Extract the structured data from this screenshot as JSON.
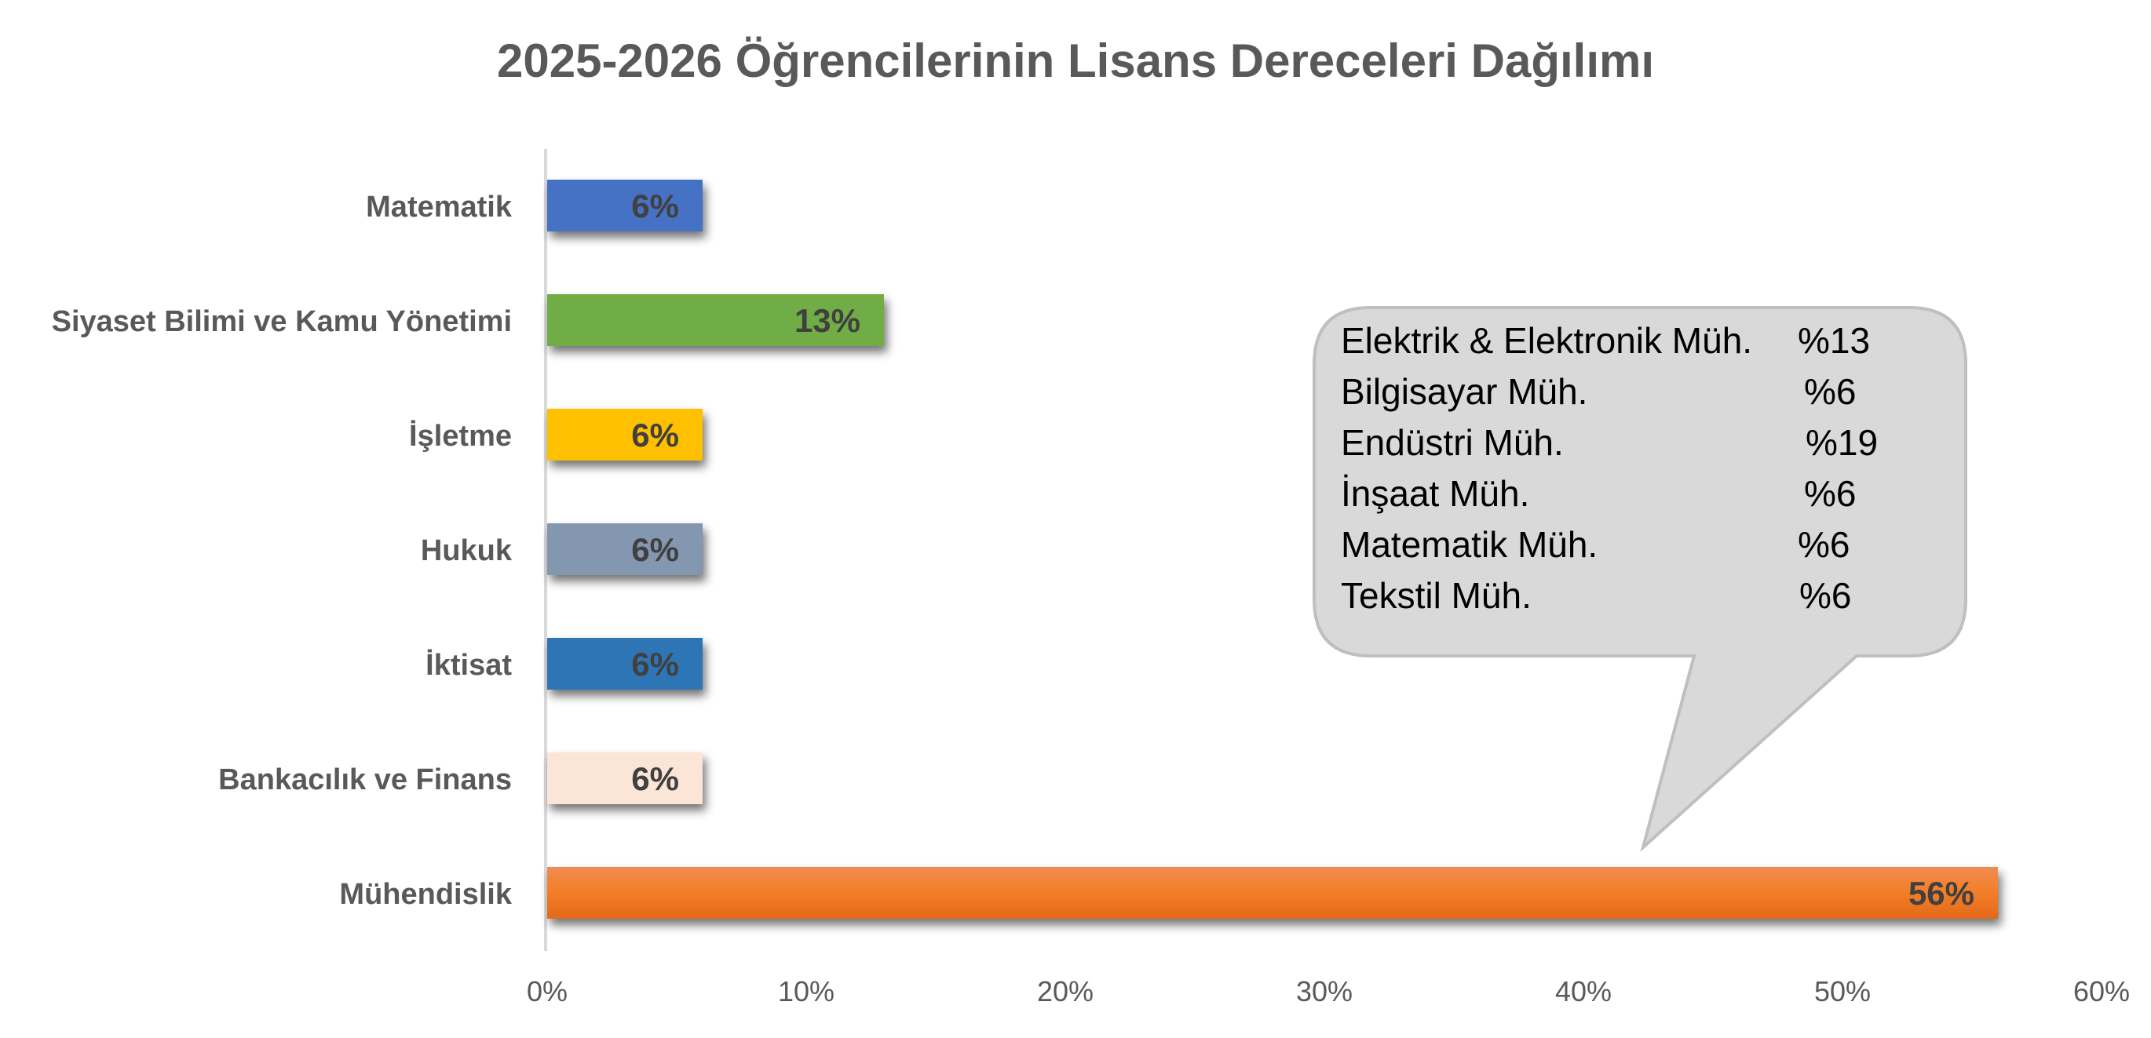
{
  "chart_data": {
    "type": "bar",
    "orientation": "horizontal",
    "title": "2025-2026 Öğrencilerinin Lisans Dereceleri Dağılımı",
    "xlabel": "",
    "ylabel": "",
    "xlim": [
      0,
      60
    ],
    "x_ticks": [
      0,
      10,
      20,
      30,
      40,
      50,
      60
    ],
    "x_tick_labels": [
      "0%",
      "10%",
      "20%",
      "30%",
      "40%",
      "50%",
      "60%"
    ],
    "grid": false,
    "legend": "none",
    "categories": [
      "Matematik",
      "Siyaset Bilimi ve Kamu Yönetimi",
      "İşletme",
      "Hukuk",
      "İktisat",
      "Bankacılık ve Finans",
      "Mühendislik"
    ],
    "values": [
      6,
      13,
      6,
      6,
      6,
      6,
      56
    ],
    "data_labels": [
      "6%",
      "13%",
      "6%",
      "6%",
      "6%",
      "6%",
      "56%"
    ],
    "colors": [
      "#4472c4",
      "#70ad47",
      "#ffc000",
      "#8497b0",
      "#2e75b6",
      "#fbe5d6",
      "#f47f2a"
    ],
    "annotation": {
      "type": "callout",
      "points_to": "Mühendislik",
      "fill": "#d9d9d9",
      "stroke": "#bfbfbf",
      "rows": [
        {
          "label": "Elektrik & Elektronik Müh.",
          "value": "%13"
        },
        {
          "label": "Bilgisayar Müh.",
          "value": "%6"
        },
        {
          "label": "Endüstri Müh.",
          "value": "%19"
        },
        {
          "label": "İnşaat Müh.",
          "value": "%6"
        },
        {
          "label": "Matematik Müh.",
          "value": "%6"
        },
        {
          "label": "Tekstil Müh.",
          "value": "%6"
        }
      ]
    }
  }
}
